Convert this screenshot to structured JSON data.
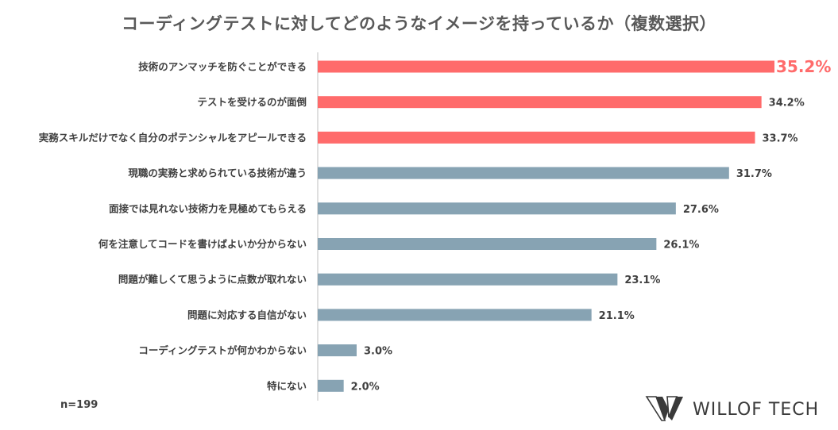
{
  "chart_data": {
    "type": "bar",
    "orientation": "horizontal",
    "title": "コーディングテストに対してどのようなイメージを持っているか（複数選択）",
    "categories": [
      "技術のアンマッチを防ぐことができる",
      "テストを受けるのが面倒",
      "実務スキルだけでなく自分のポテンシャルをアピールできる",
      "現職の実務と求められている技術が違う",
      "面接では見れない技術力を見極めてもらえる",
      "何を注意してコードを書けばよいか分からない",
      "問題が難しくて思うように点数が取れない",
      "問題に対応する自信がない",
      "コーディングテストが何かわからない",
      "特にない"
    ],
    "values": [
      35.2,
      34.2,
      33.7,
      31.7,
      27.6,
      26.1,
      23.1,
      21.1,
      3.0,
      2.0
    ],
    "value_labels": [
      "35.2%",
      "34.2%",
      "33.7%",
      "31.7%",
      "27.6%",
      "26.1%",
      "23.1%",
      "21.1%",
      "3.0%",
      "2.0%"
    ],
    "highlight_count": 3,
    "xlim": [
      0,
      35.2
    ],
    "xlabel": "",
    "ylabel": "",
    "colors": {
      "highlight": "#ff6b6b",
      "normal": "#87a3b3",
      "axis": "#bfbfbf"
    }
  },
  "note": "n=199",
  "logo": {
    "text": "WILLOF TECH",
    "mark": "willof-logo-icon"
  }
}
